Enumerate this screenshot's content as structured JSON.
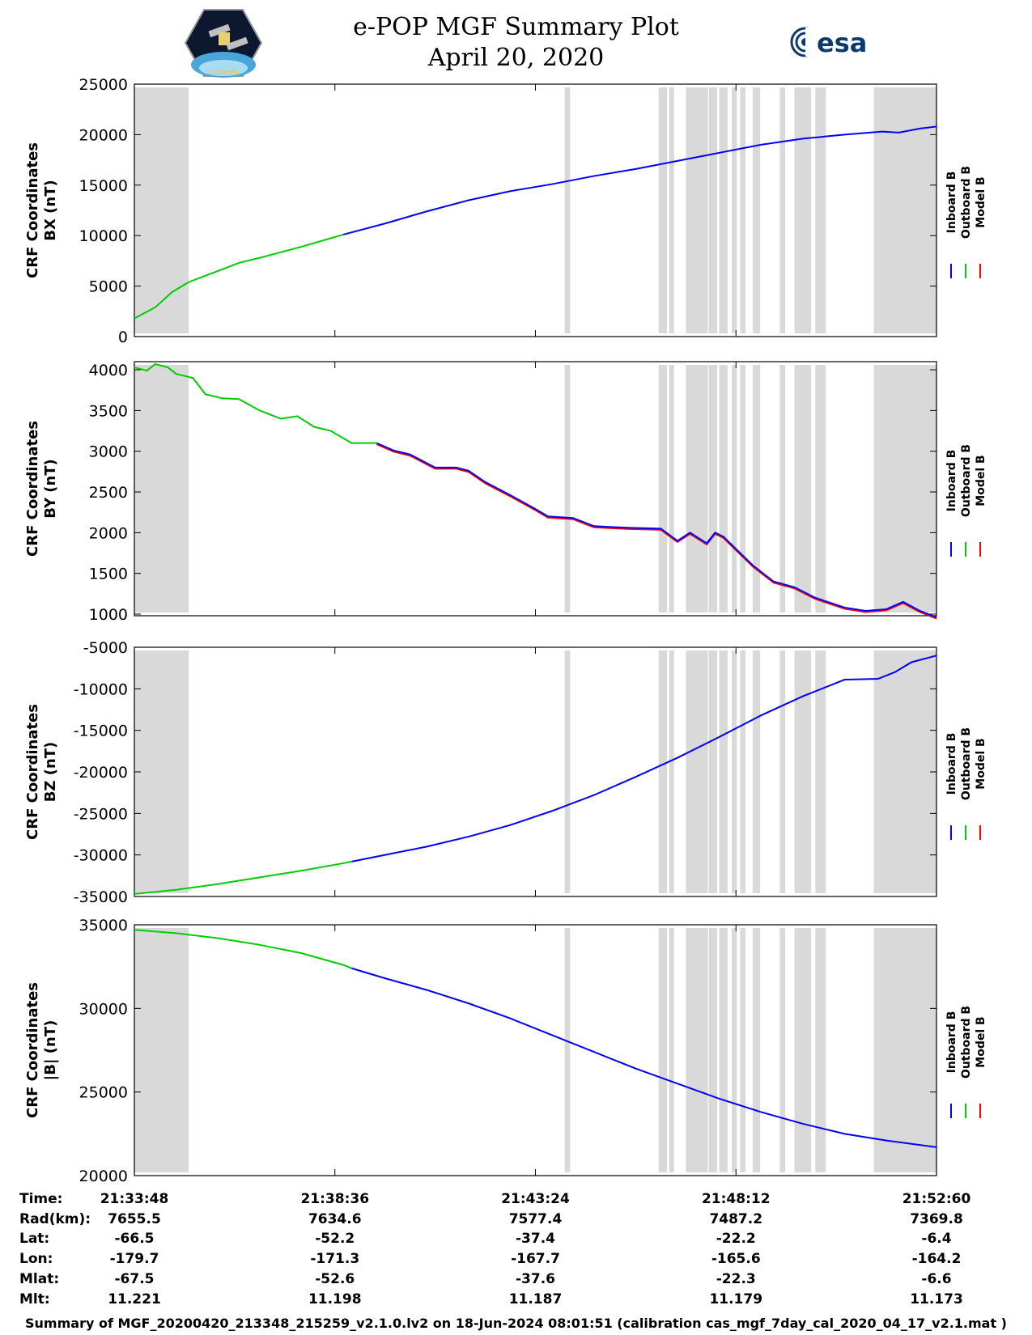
{
  "header": {
    "title_line1": "e-POP MGF Summary Plot",
    "title_line2": "April 20, 2020",
    "logo_left": "CASSIOPE",
    "logo_right": "esa"
  },
  "legend": [
    "Inboard B",
    "Outboard B",
    "Model B"
  ],
  "legend_colors": [
    "#0000ff",
    "#00cc00",
    "#ff0000"
  ],
  "gap_color": "#d9d9d9",
  "x_axis": {
    "start_min": 0,
    "end_min": 19.2,
    "ticks_min": [
      0,
      4.8,
      9.6,
      14.4,
      19.2
    ]
  },
  "data_gaps_min": [
    [
      0,
      1.3
    ],
    [
      10.3,
      10.43
    ],
    [
      12.55,
      12.75
    ],
    [
      12.8,
      12.92
    ],
    [
      13.2,
      13.73
    ],
    [
      13.75,
      13.95
    ],
    [
      14.0,
      14.2
    ],
    [
      14.3,
      14.42
    ],
    [
      14.5,
      14.63
    ],
    [
      14.8,
      14.98
    ],
    [
      15.45,
      15.58
    ],
    [
      15.8,
      16.2
    ],
    [
      16.3,
      16.55
    ],
    [
      17.7,
      19.2
    ]
  ],
  "footer": "Summary of MGF_20200420_213348_215259_v2.1.0.lv2 on 18-Jun-2024 08:01:51 (calibration cas_mgf_7day_cal_2020_04_17_v2.1.mat )",
  "table": {
    "row_labels": [
      "Time:",
      "Rad(km):",
      "Lat:",
      "Lon:",
      "Mlat:",
      "Mlt:"
    ],
    "columns": [
      [
        "21:33:48",
        "7655.5",
        "-66.5",
        "-179.7",
        "-67.5",
        "11.221"
      ],
      [
        "21:38:36",
        "7634.6",
        "-52.2",
        "-171.3",
        "-52.6",
        "11.198"
      ],
      [
        "21:43:24",
        "7577.4",
        "-37.4",
        "-167.7",
        "-37.6",
        "11.187"
      ],
      [
        "21:48:12",
        "7487.2",
        "-22.2",
        "-165.6",
        "-22.3",
        "11.179"
      ],
      [
        "21:52:60",
        "7369.8",
        "-6.4",
        "-164.2",
        "-6.6",
        "11.173"
      ]
    ]
  },
  "chart_data": [
    {
      "type": "line",
      "name": "BX",
      "ylabel": [
        "CRF Coordinates",
        "BX (nT)"
      ],
      "ylim": [
        0,
        25000
      ],
      "yticks": [
        0,
        5000,
        10000,
        15000,
        20000,
        25000
      ],
      "ytick_labels": [
        "0",
        "5000",
        "10000",
        "15000",
        "20000",
        "25000"
      ],
      "switch_min": 5.2,
      "x": [
        0,
        0.5,
        0.9,
        1.3,
        2,
        2.5,
        3,
        4,
        5,
        6,
        7,
        8,
        9,
        10,
        11,
        12,
        13,
        14,
        15,
        16,
        17,
        17.9,
        18.3,
        18.8,
        19.2
      ],
      "y": [
        1800,
        2900,
        4400,
        5400,
        6500,
        7300,
        7800,
        8900,
        10100,
        11200,
        12400,
        13500,
        14400,
        15100,
        15900,
        16600,
        17400,
        18200,
        19000,
        19600,
        20000,
        20300,
        20200,
        20600,
        20800
      ]
    },
    {
      "type": "line",
      "name": "BY",
      "ylabel": [
        "CRF Coordinates",
        "BY (nT)"
      ],
      "ylim": [
        980,
        4100
      ],
      "yticks": [
        1000,
        1500,
        2000,
        2500,
        3000,
        3500,
        4000
      ],
      "ytick_labels": [
        "1000",
        "1500",
        "2000",
        "2500",
        "3000",
        "3500",
        "4000"
      ],
      "switch_min": 5.8,
      "x": [
        0,
        0.3,
        0.5,
        0.8,
        1.0,
        1.4,
        1.7,
        2.1,
        2.5,
        3.0,
        3.5,
        3.9,
        4.3,
        4.7,
        5.2,
        5.8,
        6.2,
        6.6,
        7.2,
        7.7,
        8.0,
        8.4,
        9.0,
        9.6,
        9.9,
        10.5,
        11.0,
        11.8,
        12.6,
        13.0,
        13.3,
        13.7,
        13.9,
        14.1,
        14.4,
        14.8,
        15.3,
        15.8,
        16.3,
        17.0,
        17.5,
        18.0,
        18.4,
        18.8,
        19.2
      ],
      "y": [
        4030,
        3990,
        4070,
        4030,
        3950,
        3900,
        3700,
        3650,
        3640,
        3500,
        3400,
        3430,
        3300,
        3250,
        3100,
        3100,
        3010,
        2960,
        2800,
        2800,
        2760,
        2620,
        2460,
        2290,
        2200,
        2180,
        2080,
        2060,
        2050,
        1900,
        2000,
        1870,
        2000,
        1950,
        1800,
        1600,
        1400,
        1330,
        1200,
        1080,
        1040,
        1060,
        1150,
        1040,
        960
      ]
    },
    {
      "type": "line",
      "name": "BZ",
      "ylabel": [
        "CRF Coordinates",
        "BZ (nT)"
      ],
      "ylim": [
        -35000,
        -5000
      ],
      "yticks": [
        -35000,
        -30000,
        -25000,
        -20000,
        -15000,
        -10000,
        -5000
      ],
      "ytick_labels": [
        "-35000",
        "-30000",
        "-25000",
        "-20000",
        "-15000",
        "-10000",
        "-5000"
      ],
      "switch_min": 5.2,
      "x": [
        0,
        1,
        2,
        3,
        4,
        5,
        5.2,
        6,
        7,
        8,
        9,
        10,
        11,
        12,
        13,
        14,
        15,
        16,
        17,
        17.8,
        18.2,
        18.6,
        19.2
      ],
      "y": [
        -34700,
        -34200,
        -33500,
        -32700,
        -31900,
        -31000,
        -30800,
        -30000,
        -29000,
        -27800,
        -26400,
        -24700,
        -22800,
        -20600,
        -18300,
        -15800,
        -13200,
        -10900,
        -8900,
        -8800,
        -8000,
        -6800,
        -6000
      ]
    },
    {
      "type": "line",
      "name": "|B|",
      "ylabel": [
        "CRF Coordinates",
        "|B| (nT)"
      ],
      "ylim": [
        20000,
        35000
      ],
      "yticks": [
        20000,
        25000,
        30000,
        35000
      ],
      "ytick_labels": [
        "20000",
        "25000",
        "30000",
        "35000"
      ],
      "switch_min": 5.2,
      "x": [
        0,
        1,
        2,
        3,
        4,
        5,
        5.2,
        6,
        7,
        8,
        9,
        10,
        11,
        12,
        13,
        14,
        15,
        16,
        17,
        18,
        19.2
      ],
      "y": [
        34700,
        34500,
        34200,
        33800,
        33300,
        32600,
        32400,
        31800,
        31100,
        30300,
        29400,
        28400,
        27400,
        26400,
        25500,
        24600,
        23800,
        23100,
        22500,
        22100,
        21700
      ]
    }
  ]
}
